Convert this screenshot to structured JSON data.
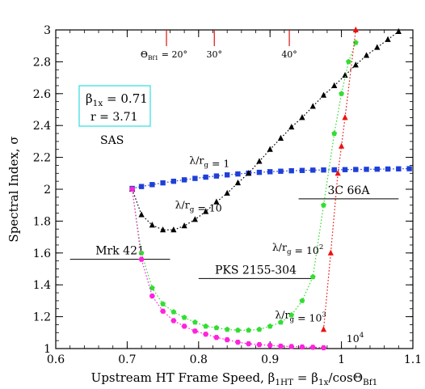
{
  "chart_data": {
    "type": "scatter",
    "xlabel": "Upstream HT Frame Speed, β1HT = β1x/cosΘBf1",
    "ylabel": "Spectral Index, σ",
    "xlim": [
      0.6,
      1.1
    ],
    "ylim": [
      1.0,
      3.0
    ],
    "x_ticks": [
      0.6,
      0.7,
      0.8,
      0.9,
      1.0,
      1.1
    ],
    "y_ticks": [
      1.0,
      1.2,
      1.4,
      1.6,
      1.8,
      2.0,
      2.2,
      2.4,
      2.6,
      2.8,
      3.0
    ],
    "x_tick_labels": [
      "0.6",
      "0.7",
      "0.8",
      "0.9",
      "1",
      "1.1"
    ],
    "y_tick_labels": [
      "1",
      "1.2",
      "1.4",
      "1.6",
      "1.8",
      "2",
      "2.2",
      "2.4",
      "2.6",
      "2.8",
      "3"
    ],
    "grid": false,
    "parameters_box": {
      "line1": "β1x = 0.71",
      "line2": "r = 3.71",
      "color": "#40e0e0"
    },
    "sas_label": "SAS",
    "angle_markers": [
      {
        "label": "ΘBf1 = 20°",
        "x": 0.755
      },
      {
        "label": "30°",
        "x": 0.822
      },
      {
        "label": "40°",
        "x": 0.927
      }
    ],
    "reference_lines": [
      {
        "label": "Mrk 421",
        "x": [
          0.62,
          0.76
        ],
        "y": 1.56
      },
      {
        "label": "PKS 2155-304",
        "x": [
          0.8,
          0.96
        ],
        "y": 1.44
      },
      {
        "label": "3C 66A",
        "x": [
          0.94,
          1.08
        ],
        "y": 1.94
      }
    ],
    "series": [
      {
        "name": "λ/rg = 1",
        "color": "#1f3fd8",
        "marker": "square",
        "x": [
          0.707,
          0.72,
          0.735,
          0.75,
          0.765,
          0.78,
          0.795,
          0.81,
          0.825,
          0.84,
          0.855,
          0.87,
          0.885,
          0.9,
          0.915,
          0.93,
          0.945,
          0.96,
          0.975,
          0.99,
          1.005,
          1.02,
          1.035,
          1.05,
          1.065,
          1.08,
          1.095
        ],
        "y": [
          2.005,
          2.017,
          2.029,
          2.04,
          2.05,
          2.059,
          2.068,
          2.076,
          2.083,
          2.09,
          2.096,
          2.101,
          2.106,
          2.11,
          2.113,
          2.116,
          2.118,
          2.12,
          2.121,
          2.122,
          2.123,
          2.124,
          2.125,
          2.126,
          2.127,
          2.128,
          2.129
        ]
      },
      {
        "name": "λ/rg = 10",
        "color": "#000000",
        "marker": "triangle",
        "x": [
          0.707,
          0.72,
          0.735,
          0.75,
          0.765,
          0.78,
          0.795,
          0.81,
          0.825,
          0.84,
          0.855,
          0.87,
          0.885,
          0.9,
          0.915,
          0.93,
          0.945,
          0.96,
          0.975,
          0.99,
          1.005,
          1.02,
          1.035,
          1.05,
          1.065,
          1.08
        ],
        "y": [
          2.0,
          1.84,
          1.775,
          1.745,
          1.745,
          1.77,
          1.81,
          1.86,
          1.92,
          1.975,
          2.04,
          2.1,
          2.175,
          2.25,
          2.32,
          2.39,
          2.45,
          2.52,
          2.59,
          2.65,
          2.715,
          2.78,
          2.84,
          2.89,
          2.94,
          2.99
        ]
      },
      {
        "name": "λ/rg = 10^2",
        "color": "#33dd33",
        "marker": "pentagon",
        "x": [
          0.707,
          0.72,
          0.735,
          0.75,
          0.765,
          0.78,
          0.795,
          0.81,
          0.825,
          0.84,
          0.855,
          0.87,
          0.885,
          0.9,
          0.915,
          0.93,
          0.945,
          0.96,
          0.975,
          0.99,
          1.0,
          1.01,
          1.02
        ],
        "y": [
          2.0,
          1.6,
          1.38,
          1.28,
          1.23,
          1.195,
          1.165,
          1.14,
          1.13,
          1.12,
          1.115,
          1.115,
          1.12,
          1.14,
          1.165,
          1.21,
          1.3,
          1.45,
          1.9,
          2.35,
          2.6,
          2.8,
          2.92
        ]
      },
      {
        "name": "λ/rg = 10^3",
        "color": "#ff22dd",
        "marker": "hexagon",
        "x": [
          0.707,
          0.72,
          0.735,
          0.75,
          0.765,
          0.78,
          0.795,
          0.81,
          0.825,
          0.84,
          0.855,
          0.87,
          0.885,
          0.9,
          0.915,
          0.93,
          0.945,
          0.96,
          0.975
        ],
        "y": [
          2.0,
          1.56,
          1.33,
          1.235,
          1.175,
          1.14,
          1.11,
          1.09,
          1.07,
          1.055,
          1.04,
          1.03,
          1.025,
          1.02,
          1.015,
          1.013,
          1.01,
          1.008,
          1.005
        ]
      },
      {
        "name": "10^4",
        "color": "#ee1111",
        "marker": "triangle",
        "x": [
          0.975,
          0.985,
          0.995,
          1.0,
          1.005,
          1.02
        ],
        "y": [
          1.12,
          1.6,
          2.1,
          2.27,
          2.45,
          3.0
        ]
      }
    ],
    "series_labels": [
      {
        "text": "λ/rg = 1",
        "x": 0.787,
        "y": 2.16
      },
      {
        "text": "λ/rg = 10",
        "x": 0.767,
        "y": 1.88
      },
      {
        "text": "λ/rg = 10^2",
        "x": 0.903,
        "y": 1.615
      },
      {
        "text": "λ/rg = 10^3",
        "x": 0.907,
        "y": 1.19
      },
      {
        "text": "10^4",
        "x": 1.007,
        "y": 1.04
      }
    ]
  }
}
